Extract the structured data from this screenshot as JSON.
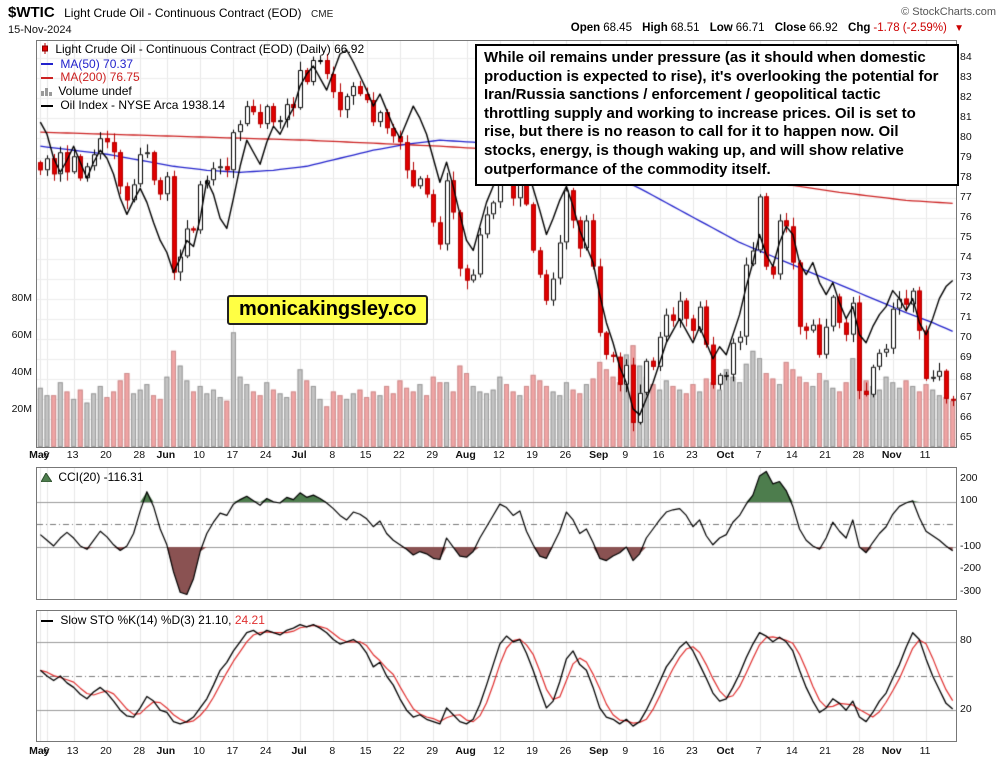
{
  "header": {
    "symbol": "$WTIC",
    "title": "Light Crude Oil - Continuous Contract (EOD)",
    "exchange": "CME",
    "source": "© StockCharts.com",
    "date": "15-Nov-2024",
    "quote": {
      "open_label": "Open",
      "open_value": "68.45",
      "high_label": "High",
      "high_value": "68.51",
      "low_label": "Low",
      "low_value": "66.71",
      "close_label": "Close",
      "close_value": "66.92",
      "chg_label": "Chg",
      "chg_value": "-1.78 (-2.59%)",
      "down_triangle": "▼"
    }
  },
  "legend": {
    "main": "Light Crude Oil - Continuous Contract (EOD) (Daily) 66.92",
    "ma50": "MA(50) 70.37",
    "ma200": "MA(200) 76.75",
    "volume": "Volume undef",
    "oil_index": "Oil Index - NYSE Arca 1938.14"
  },
  "cci_legend": "CCI(20) -116.31",
  "sto_legend_black": "Slow STO %K(14) %D(3) 21.10,",
  "sto_legend_red": "24.21",
  "annotation": "While oil remains under pressure (as it should when domestic production is expected to rise), it's overlooking the potential for Iran/Russia sanctions / enforcement / geopolitical tactic throttling supply and working to increase prices. Oil is set to rise, but there is no reason to call for it to happen now. Oil stocks, energy, is though waking up, and will show relative outperformance of the commodity itself.",
  "watermark": "monicakingsley.co",
  "colors": {
    "accent_red": "#cc0000",
    "ma50_blue": "#2222cc",
    "ma200_red": "#cc2222",
    "candle_down": "#e00000",
    "volume_up": "#c4c4c4",
    "volume_down": "#f0a4a4",
    "cci_fill_above": "#4d7d4d",
    "cci_fill_below": "#8a5252",
    "sto_d_red": "#e03030",
    "watermark_bg": "#ffff44"
  },
  "chart_data": [
    {
      "type": "candlestick",
      "title": "Light Crude Oil - Continuous Contract (EOD) (Daily)",
      "last_close": 66.92,
      "ylim": [
        65,
        84
      ],
      "yticks": [
        84,
        83,
        82,
        81,
        80,
        79,
        78,
        77,
        76,
        75,
        74,
        73,
        72,
        71,
        70,
        69,
        68,
        67,
        66,
        65
      ],
      "x_ticks": [
        [
          "May",
          0,
          1
        ],
        [
          "6",
          1,
          0
        ],
        [
          "13",
          5,
          0
        ],
        [
          "20",
          10,
          0
        ],
        [
          "28",
          15,
          0
        ],
        [
          "Jun",
          19,
          1
        ],
        [
          "10",
          24,
          0
        ],
        [
          "17",
          29,
          0
        ],
        [
          "24",
          34,
          0
        ],
        [
          "Jul",
          39,
          1
        ],
        [
          "8",
          44,
          0
        ],
        [
          "15",
          49,
          0
        ],
        [
          "22",
          54,
          0
        ],
        [
          "29",
          59,
          0
        ],
        [
          "Aug",
          64,
          1
        ],
        [
          "12",
          69,
          0
        ],
        [
          "19",
          74,
          0
        ],
        [
          "26",
          79,
          0
        ],
        [
          "Sep",
          84,
          1
        ],
        [
          "9",
          88,
          0
        ],
        [
          "16",
          93,
          0
        ],
        [
          "23",
          98,
          0
        ],
        [
          "Oct",
          103,
          1
        ],
        [
          "7",
          108,
          0
        ],
        [
          "14",
          113,
          0
        ],
        [
          "21",
          118,
          0
        ],
        [
          "28",
          123,
          0
        ],
        [
          "Nov",
          128,
          1
        ],
        [
          "11",
          133,
          0
        ]
      ],
      "close": [
        78.4,
        79.0,
        78.2,
        79.3,
        78.3,
        79.1,
        78.0,
        78.6,
        79.2,
        80.0,
        79.8,
        79.3,
        77.6,
        76.9,
        77.7,
        79.2,
        79.3,
        77.9,
        77.2,
        78.1,
        73.3,
        74.1,
        75.5,
        75.4,
        77.7,
        77.9,
        78.5,
        78.6,
        78.4,
        80.3,
        80.7,
        81.6,
        81.3,
        80.7,
        81.6,
        80.8,
        80.9,
        81.7,
        81.5,
        83.4,
        82.8,
        83.9,
        83.9,
        83.2,
        82.3,
        81.4,
        82.1,
        82.6,
        82.2,
        81.9,
        80.8,
        81.3,
        80.5,
        80.1,
        79.8,
        78.4,
        77.6,
        78.0,
        77.2,
        75.8,
        74.7,
        77.9,
        76.3,
        73.5,
        72.9,
        73.2,
        75.2,
        76.2,
        76.8,
        79.1,
        78.4,
        77.0,
        78.0,
        76.7,
        74.4,
        73.2,
        71.9,
        73.0,
        74.8,
        77.4,
        75.9,
        74.5,
        75.9,
        73.6,
        70.3,
        69.2,
        69.1,
        67.7,
        68.7,
        65.8,
        67.3,
        68.9,
        68.6,
        70.1,
        71.2,
        70.9,
        71.9,
        71.0,
        70.4,
        71.6,
        69.7,
        67.7,
        68.2,
        68.2,
        69.8,
        70.1,
        73.7,
        74.4,
        77.1,
        73.6,
        73.2,
        75.9,
        75.6,
        73.8,
        70.6,
        70.4,
        70.7,
        69.2,
        70.6,
        72.1,
        70.8,
        70.2,
        71.8,
        67.4,
        67.2,
        68.6,
        69.3,
        69.5,
        71.5,
        72.0,
        71.7,
        72.4,
        70.4,
        68.0,
        68.1,
        68.4,
        67.0,
        66.92
      ],
      "overlays": [
        {
          "name": "MA(200)",
          "last": 76.75,
          "color": "#cc2222",
          "points": [
            [
              0,
              80.3
            ],
            [
              20,
              80.1
            ],
            [
              40,
              79.9
            ],
            [
              60,
              79.6
            ],
            [
              80,
              79.2
            ],
            [
              90,
              78.8
            ],
            [
              100,
              78.3
            ],
            [
              110,
              77.8
            ],
            [
              120,
              77.3
            ],
            [
              130,
              76.9
            ],
            [
              137,
              76.75
            ]
          ]
        },
        {
          "name": "MA(50)",
          "last": 70.37,
          "color": "#2222cc",
          "points": [
            [
              0,
              79.6
            ],
            [
              10,
              79.2
            ],
            [
              15,
              78.9
            ],
            [
              20,
              78.6
            ],
            [
              25,
              78.4
            ],
            [
              30,
              78.3
            ],
            [
              35,
              78.4
            ],
            [
              40,
              78.6
            ],
            [
              45,
              79.0
            ],
            [
              50,
              79.4
            ],
            [
              55,
              79.7
            ],
            [
              60,
              79.9
            ],
            [
              65,
              79.8
            ],
            [
              70,
              79.6
            ],
            [
              75,
              79.3
            ],
            [
              80,
              78.9
            ],
            [
              85,
              78.3
            ],
            [
              90,
              77.5
            ],
            [
              95,
              76.6
            ],
            [
              100,
              75.7
            ],
            [
              105,
              74.8
            ],
            [
              110,
              74.1
            ],
            [
              115,
              73.4
            ],
            [
              120,
              72.7
            ],
            [
              125,
              72.0
            ],
            [
              130,
              71.3
            ],
            [
              134,
              70.8
            ],
            [
              137,
              70.37
            ]
          ]
        },
        {
          "name": "Oil Index - NYSE Arca",
          "last": 1938.14,
          "color": "#000000",
          "values": [
            80.8,
            80.2,
            79.0,
            78.3,
            78.9,
            79.6,
            78.8,
            78.0,
            78.8,
            79.4,
            79.0,
            78.2,
            77.0,
            76.2,
            76.9,
            77.5,
            76.8,
            75.8,
            74.9,
            74.3,
            73.3,
            74.0,
            74.9,
            74.6,
            76.0,
            77.9,
            77.2,
            76.0,
            75.5,
            77.0,
            78.6,
            79.9,
            79.3,
            78.7,
            79.8,
            80.6,
            80.2,
            80.9,
            81.5,
            82.6,
            83.2,
            83.6,
            83.0,
            82.4,
            83.3,
            84.2,
            84.4,
            83.8,
            83.1,
            82.4,
            81.6,
            82.2,
            81.4,
            80.6,
            80.0,
            80.8,
            81.6,
            81.0,
            80.2,
            79.0,
            77.8,
            78.8,
            77.6,
            76.2,
            74.9,
            74.4,
            75.6,
            76.8,
            77.6,
            78.9,
            79.8,
            80.4,
            79.6,
            78.7,
            77.5,
            76.4,
            75.2,
            76.0,
            76.9,
            77.6,
            76.6,
            75.4,
            74.6,
            73.8,
            72.2,
            70.8,
            69.8,
            68.6,
            67.8,
            66.5,
            66.2,
            67.0,
            67.8,
            68.8,
            69.8,
            70.4,
            71.0,
            70.4,
            69.8,
            70.6,
            69.8,
            69.0,
            69.6,
            69.2,
            70.2,
            71.2,
            72.6,
            73.8,
            75.2,
            74.2,
            73.6,
            74.8,
            75.6,
            75.2,
            73.8,
            73.2,
            73.8,
            72.8,
            72.2,
            72.8,
            71.8,
            71.0,
            71.6,
            70.2,
            69.8,
            70.6,
            71.2,
            71.6,
            72.4,
            72.0,
            71.4,
            72.0,
            70.8,
            70.2,
            71.0,
            72.0,
            72.6,
            72.9
          ]
        }
      ],
      "volume": {
        "unit": "M",
        "ticks": [
          {
            "label": "80M",
            "v": 80
          },
          {
            "label": "60M",
            "v": 60
          },
          {
            "label": "40M",
            "v": 40
          },
          {
            "label": "20M",
            "v": 20
          }
        ],
        "values": [
          32,
          28,
          28,
          35,
          30,
          26,
          31,
          24,
          29,
          33,
          27,
          30,
          36,
          40,
          29,
          31,
          34,
          28,
          26,
          38,
          52,
          44,
          36,
          30,
          33,
          29,
          31,
          27,
          25,
          62,
          38,
          34,
          30,
          28,
          35,
          31,
          29,
          27,
          30,
          42,
          36,
          33,
          26,
          22,
          30,
          28,
          26,
          29,
          31,
          27,
          30,
          28,
          33,
          29,
          36,
          32,
          30,
          34,
          28,
          38,
          35,
          35,
          30,
          44,
          40,
          33,
          30,
          29,
          31,
          38,
          34,
          30,
          28,
          33,
          39,
          36,
          33,
          30,
          28,
          35,
          31,
          29,
          34,
          37,
          46,
          42,
          38,
          35,
          50,
          55,
          44,
          38,
          34,
          31,
          36,
          33,
          31,
          29,
          34,
          30,
          37,
          35,
          31,
          42,
          38,
          35,
          45,
          52,
          48,
          40,
          37,
          34,
          46,
          42,
          38,
          35,
          33,
          40,
          36,
          32,
          30,
          35,
          48,
          42,
          36,
          33,
          31,
          38,
          35,
          32,
          36,
          33,
          30,
          34,
          31,
          28,
          27,
          25
        ]
      }
    },
    {
      "type": "line",
      "name": "CCI(20)",
      "last": -116.31,
      "ylim": [
        -330,
        250
      ],
      "yticks": [
        200,
        100,
        -100,
        -200,
        -300
      ],
      "hlines": [
        100,
        -100
      ],
      "centerline": 0,
      "values": [
        -45,
        -70,
        -95,
        -60,
        -35,
        -60,
        -95,
        -110,
        -70,
        -30,
        -55,
        -90,
        -115,
        -95,
        -40,
        60,
        145,
        80,
        -20,
        -90,
        -210,
        -300,
        -310,
        -240,
        -120,
        -40,
        10,
        50,
        40,
        90,
        110,
        125,
        105,
        85,
        115,
        100,
        95,
        120,
        110,
        140,
        120,
        130,
        115,
        95,
        70,
        40,
        20,
        55,
        45,
        25,
        -10,
        15,
        -40,
        -70,
        -90,
        -110,
        -135,
        -120,
        -130,
        -150,
        -155,
        -60,
        -100,
        -140,
        -145,
        -120,
        -60,
        -10,
        40,
        90,
        75,
        40,
        60,
        -30,
        -90,
        -140,
        -150,
        -90,
        -30,
        55,
        20,
        -40,
        -20,
        -80,
        -150,
        -160,
        -140,
        -125,
        -100,
        -160,
        -130,
        -60,
        -20,
        20,
        55,
        65,
        70,
        40,
        -10,
        20,
        -50,
        -90,
        -60,
        -45,
        10,
        40,
        90,
        130,
        215,
        235,
        180,
        190,
        150,
        80,
        -20,
        -70,
        -95,
        -110,
        -60,
        10,
        -30,
        -60,
        20,
        -100,
        -125,
        -80,
        -40,
        -10,
        45,
        80,
        95,
        105,
        30,
        -30,
        -50,
        -70,
        -95,
        -116.31
      ]
    },
    {
      "type": "line",
      "name": "Slow STO %K(14) %D(3)",
      "k_last": 21.1,
      "d_last": 24.21,
      "ylim": [
        0,
        100
      ],
      "yticks": [
        80,
        20
      ],
      "hlines": [
        80,
        20
      ],
      "centerline": 50,
      "d_smoothing": 3,
      "k": [
        55,
        50,
        46,
        50,
        44,
        40,
        34,
        30,
        36,
        40,
        35,
        28,
        20,
        15,
        14,
        22,
        32,
        28,
        20,
        18,
        10,
        8,
        10,
        14,
        22,
        30,
        42,
        55,
        62,
        72,
        80,
        88,
        90,
        86,
        90,
        88,
        86,
        90,
        92,
        95,
        93,
        95,
        92,
        88,
        82,
        78,
        80,
        82,
        78,
        70,
        58,
        62,
        50,
        42,
        30,
        20,
        14,
        16,
        12,
        10,
        8,
        22,
        16,
        10,
        8,
        12,
        25,
        42,
        60,
        78,
        85,
        80,
        82,
        70,
        55,
        38,
        22,
        28,
        45,
        65,
        72,
        60,
        55,
        40,
        22,
        14,
        12,
        8,
        12,
        6,
        10,
        20,
        32,
        45,
        58,
        66,
        75,
        80,
        72,
        60,
        48,
        35,
        28,
        30,
        40,
        52,
        66,
        78,
        88,
        85,
        80,
        84,
        80,
        72,
        55,
        40,
        28,
        18,
        22,
        30,
        26,
        20,
        28,
        14,
        10,
        18,
        28,
        35,
        48,
        60,
        75,
        88,
        82,
        65,
        50,
        38,
        26,
        21.1
      ]
    }
  ]
}
